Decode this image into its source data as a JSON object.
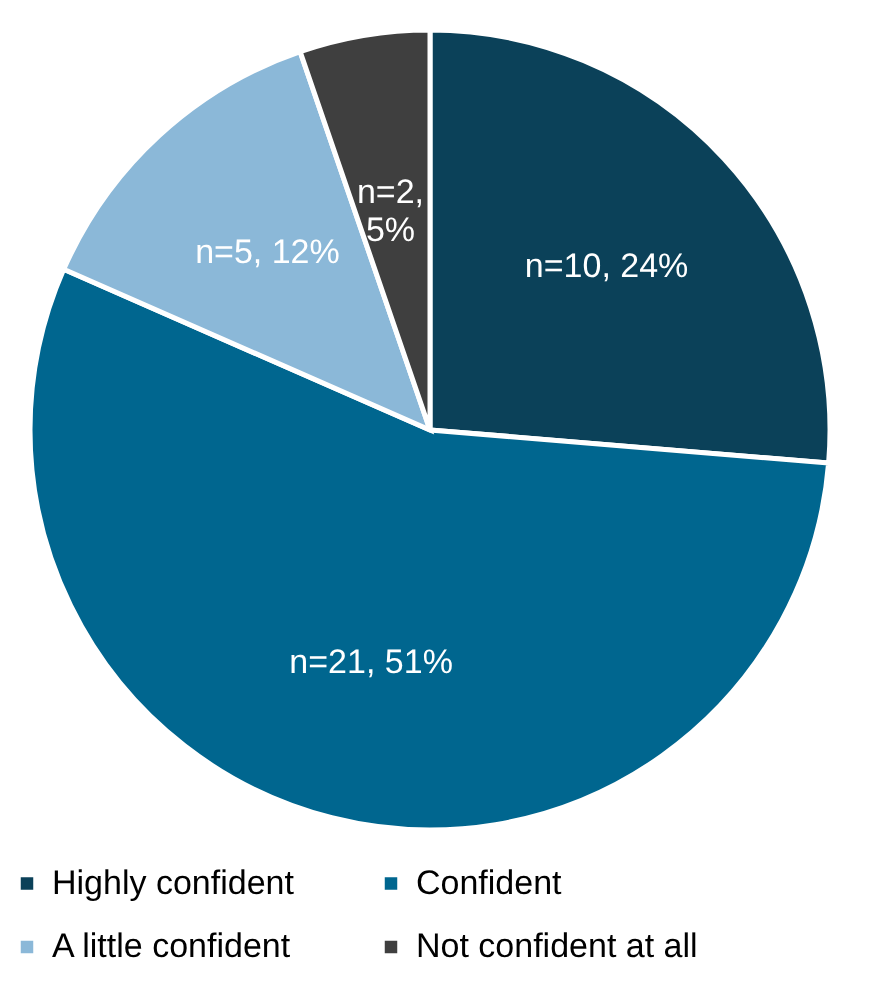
{
  "chart_data": {
    "type": "pie",
    "categories": [
      "Highly confident",
      "Confident",
      "A little confident",
      "Not confident at all"
    ],
    "values": [
      10,
      21,
      5,
      2
    ],
    "colors": [
      "#0b4159",
      "#00668f",
      "#8bb8d8",
      "#3f3f3f"
    ],
    "value_labels": [
      "n=10, 24%",
      "n=21, 51%",
      "n=5, 12%",
      "n=2, 5%"
    ],
    "legend": "bottom"
  }
}
